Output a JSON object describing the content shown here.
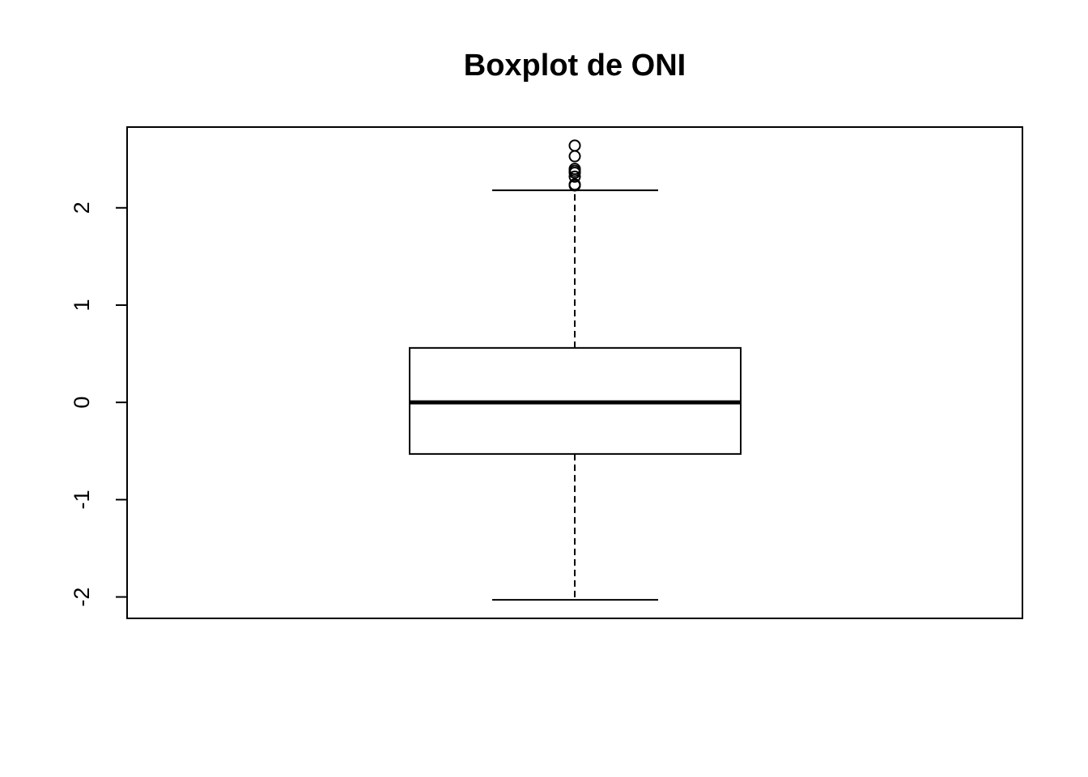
{
  "chart_data": {
    "type": "boxplot",
    "title": "Boxplot de ONI",
    "xlabel": "",
    "ylabel": "",
    "ylim": [
      -2.22,
      2.83
    ],
    "yticks": [
      -2,
      -1,
      0,
      1,
      2
    ],
    "ytick_labels": [
      "-2",
      "-1",
      "0",
      "1",
      "2"
    ],
    "grid": false,
    "box": {
      "whisker_low": -2.03,
      "q1": -0.53,
      "median": 0.0,
      "q3": 0.56,
      "whisker_high": 2.18
    },
    "outliers": [
      2.23,
      2.24,
      2.32,
      2.36,
      2.38,
      2.4,
      2.53,
      2.64
    ],
    "colors": {
      "stroke": "#000000",
      "background": "#ffffff"
    }
  }
}
